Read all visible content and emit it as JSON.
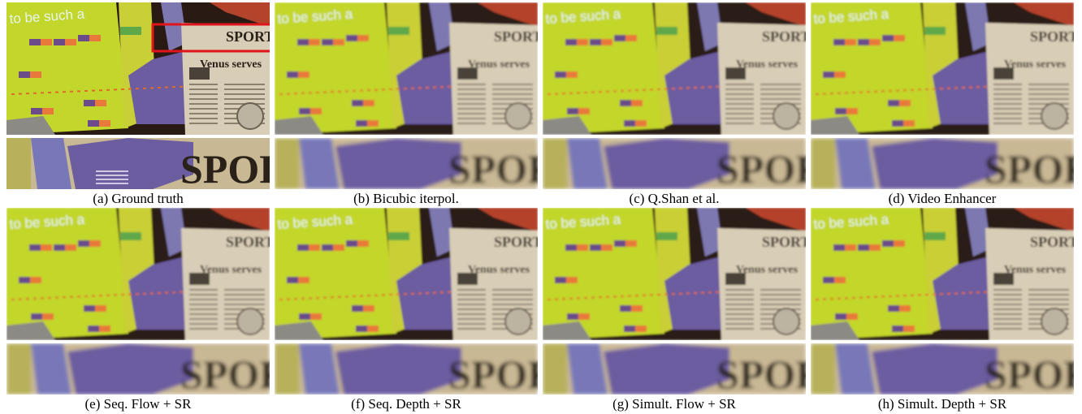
{
  "figure": {
    "panels": [
      {
        "id": "a",
        "caption": "(a) Ground truth",
        "sharp": true
      },
      {
        "id": "b",
        "caption": "(b) Bicubic iterpol.",
        "sharp": false
      },
      {
        "id": "c",
        "caption": "(c) Q.Shan et al.",
        "sharp": false
      },
      {
        "id": "d",
        "caption": "(d) Video Enhancer",
        "sharp": false
      },
      {
        "id": "e",
        "caption": "(e) Seq. Flow + SR",
        "sharp": false
      },
      {
        "id": "f",
        "caption": "(f) Seq. Depth + SR",
        "sharp": false
      },
      {
        "id": "g",
        "caption": "(g) Simult. Flow + SR",
        "sharp": false
      },
      {
        "id": "h",
        "caption": "(h) Simult. Depth + SR",
        "sharp": false
      }
    ],
    "scene_text": {
      "sport": "SPORT",
      "crop_sport": "SPORT",
      "headline": "Venus serves",
      "slogan": "to be such a"
    },
    "colors": {
      "yellow_green": "#c3d62c",
      "newspaper": "#d8cdb6",
      "purple": "#6c5ca0",
      "dark": "#2a1a14",
      "highlight_box": "#e0141a"
    }
  }
}
